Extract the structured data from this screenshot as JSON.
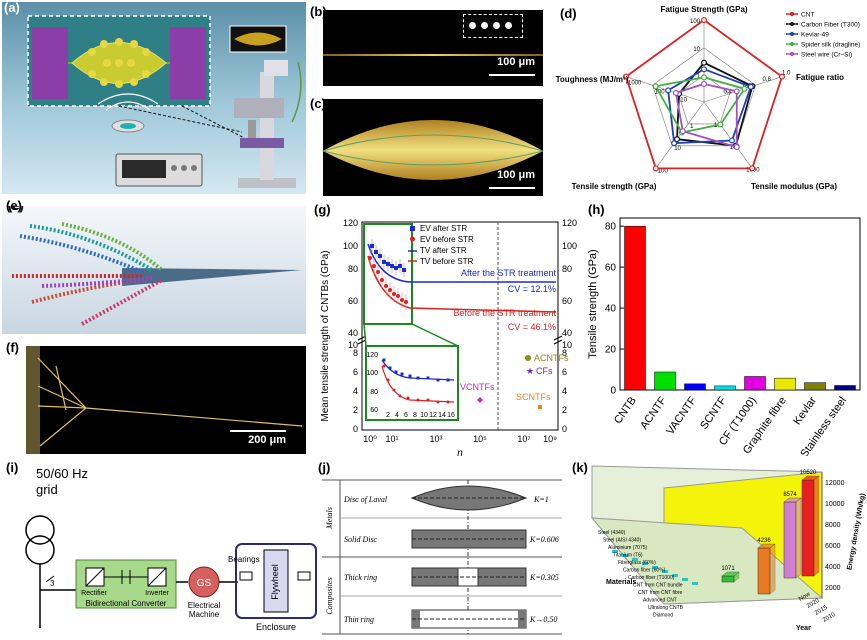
{
  "labels": {
    "a": "(a)",
    "b": "(b)",
    "c": "(c)",
    "d": "(d)",
    "e": "(e)",
    "f": "(f)",
    "g": "(g)",
    "h": "(h)",
    "i": "(i)",
    "j": "(j)",
    "k": "(k)"
  },
  "scales": {
    "b": "100 μm",
    "c": "100 μm",
    "f": "200 μm"
  },
  "radar": {
    "axes": [
      "Fatigue Strength (GPa)",
      "Fatigue ratio",
      "Tensile modulus (GPa)",
      "Tensile strength (GPa)",
      "Toughness (MJ/m³)"
    ],
    "ticks": {
      "top": [
        "100",
        "10",
        "1"
      ],
      "right": [
        "1.0",
        "0.8",
        "0.6",
        "0.4"
      ],
      "lowright": [
        "1000",
        "100",
        "10"
      ],
      "lowleft": [
        "100",
        "10",
        "1"
      ],
      "left": [
        "1000",
        "100",
        "10"
      ]
    },
    "legend": [
      {
        "name": "CNT",
        "color": "#e02020",
        "marker": "circle"
      },
      {
        "name": "Carbon Fiber (T300)",
        "color": "#111111",
        "marker": "square"
      },
      {
        "name": "Kevlar-49",
        "color": "#1f3fbf",
        "marker": "triangle"
      },
      {
        "name": "Spider silk (dragline)",
        "color": "#40b040",
        "marker": "star"
      },
      {
        "name": "Steel wire (Cr−Si)",
        "color": "#a050c0",
        "marker": "triangle-down"
      }
    ]
  },
  "chart_g": {
    "ylabel": "Mean tensile strength of CNTBs (GPa)",
    "xlabel": "n",
    "legend": [
      "EV after STR",
      "EV before STR",
      "TV after STR",
      "TV before STR"
    ],
    "annotations": {
      "after": "After the STR treatment",
      "cv_after": "CV = 12.1%",
      "before": "Before the STR treatment",
      "cv_before": "CV = 46.1%"
    },
    "points": {
      "acntfs": "ACNTFs",
      "cfs": "CFs",
      "vcntfs": "VCNTFs",
      "scntfs": "SCNTFs"
    },
    "yticks_left_top": [
      "40",
      "60",
      "80",
      "100",
      "120"
    ],
    "yticks_left_bot": [
      "0",
      "2",
      "4",
      "6",
      "8",
      "10"
    ],
    "yticks_right": [
      "0",
      "2",
      "4",
      "6",
      "8",
      "10",
      "40",
      "60",
      "80",
      "100",
      "120"
    ],
    "xticks": [
      "10⁰",
      "10¹",
      "10³",
      "10⁵",
      "10⁷",
      "10⁹"
    ],
    "inset_yticks": [
      "60",
      "80",
      "100",
      "120"
    ],
    "inset_xticks": [
      "2",
      "4",
      "6",
      "8",
      "10",
      "12",
      "14",
      "16"
    ]
  },
  "chart_data": {
    "type": "bar",
    "categories": [
      "CNTB",
      "ACNTF",
      "VACNTF",
      "SCNTF",
      "CF (T1000)",
      "Graphite fibre",
      "Kevlar",
      "Stainless steel"
    ],
    "values": [
      80,
      8.8,
      3.0,
      2.0,
      6.6,
      5.8,
      3.6,
      2.2
    ],
    "colors": [
      "#ff0000",
      "#00e000",
      "#0000ff",
      "#00e0e0",
      "#e000e0",
      "#e8e800",
      "#808000",
      "#000080"
    ],
    "ylabel": "Tensile strength (GPa)",
    "yticks": [
      "0",
      "20",
      "40",
      "60",
      "80"
    ],
    "ylim": [
      0,
      84
    ]
  },
  "circuit": {
    "grid": "50/60 Hz\ngrid",
    "grid_l1": "50/60 Hz",
    "grid_l2": "grid",
    "phase": "3",
    "rectifier": "Rectifier",
    "inverter": "Inverter",
    "converter": "Bidirectional Converter",
    "gs": "GS",
    "machine1": "Electrical",
    "machine2": "Machine",
    "bearings": "Bearings",
    "flywheel": "Flywheel",
    "enclosure": "Enclosure"
  },
  "discs": {
    "rows": [
      {
        "name": "Disc of Laval",
        "k": "K=1"
      },
      {
        "name": "Solid Disc",
        "k": "K=0.606"
      },
      {
        "name": "Thick ring",
        "k": "K=0.305"
      },
      {
        "name": "Thin ring",
        "k": "K→0.50"
      }
    ],
    "groups": [
      "Metals",
      "Composites"
    ]
  },
  "chart_k": {
    "zlabel": "Energy density (Wh/kg)",
    "zticks": [
      "2000",
      "4000",
      "6000",
      "8000",
      "10000",
      "12000"
    ],
    "bar_labels": [
      "1071",
      "4236",
      "8574",
      "10620"
    ],
    "xlabel": "Materials",
    "ylabel": "Year",
    "years": [
      "2010",
      "2015",
      "2020",
      "Now"
    ],
    "materials": [
      "Steel (4340)",
      "Steel (AISI 4340)",
      "Aluminium (7075)",
      "Titanium (T6)",
      "Fiberglass (60%)",
      "Carbon fiber (60%)",
      "Carbon fiber (T1000)",
      "CNT from CNT bundle",
      "CNT from CNT fibre",
      "Advanced CNT",
      "Ultralong CNTB",
      "Diamond"
    ]
  }
}
